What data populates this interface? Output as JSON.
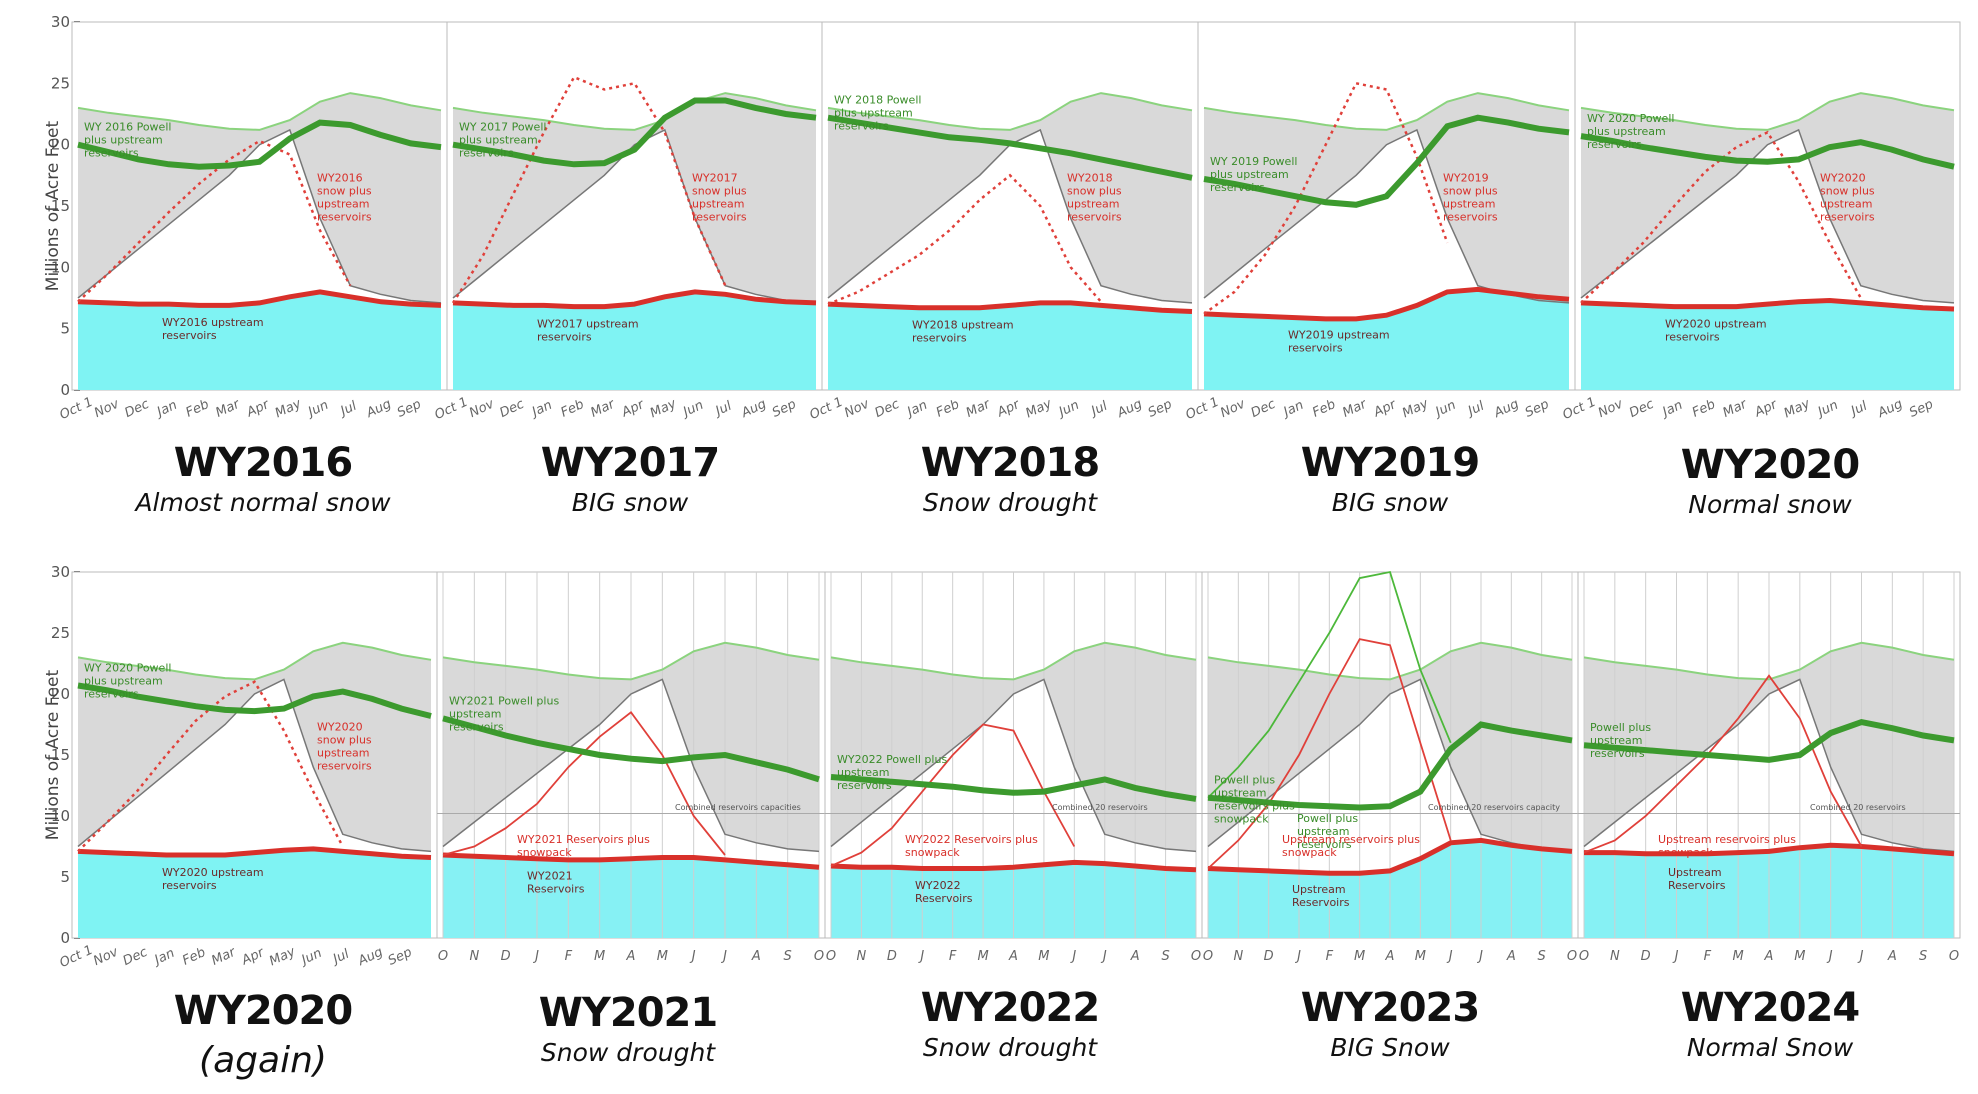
{
  "chart_data": {
    "type": "area",
    "ylabel": "Millions of Acre Feet",
    "ylim": [
      0,
      30
    ],
    "yticks": [
      0,
      5,
      10,
      15,
      20,
      25,
      30
    ],
    "months_long": [
      "Oct 1",
      "Nov",
      "Dec",
      "Jan",
      "Feb",
      "Mar",
      "Apr",
      "May",
      "Jun",
      "Jul",
      "Aug",
      "Sep"
    ],
    "months_short": [
      "O",
      "N",
      "D",
      "J",
      "F",
      "M",
      "A",
      "M",
      "J",
      "J",
      "A",
      "S",
      "O"
    ],
    "normal_powell": [
      23,
      22.6,
      22.3,
      22,
      21.6,
      21.3,
      21.2,
      22,
      23.5,
      24.2,
      23.8,
      23.2,
      22.8
    ],
    "normal_snow": [
      7.5,
      9.5,
      11.5,
      13.5,
      15.5,
      17.5,
      20,
      21.2,
      14,
      8.5,
      7.8,
      7.3,
      7.1
    ],
    "rows": [
      {
        "panels": [
          {
            "title": "WY2016",
            "subtitle": "Almost normal snow",
            "style": "old",
            "labels": {
              "green": "WY 2016 Powell plus upstream reservoirs",
              "red_snow": "WY2016 snow plus upstream reservoirs",
              "upstream": "WY2016 upstream reservoirs"
            },
            "powell": [
              20,
              19.4,
              18.8,
              18.4,
              18.2,
              18.3,
              18.6,
              20.5,
              21.8,
              21.6,
              20.8,
              20.1,
              19.8
            ],
            "upstream": [
              7.2,
              7.1,
              7.0,
              7.0,
              6.9,
              6.9,
              7.1,
              7.6,
              8.0,
              7.6,
              7.2,
              7.0,
              6.9
            ],
            "snow": [
              7.2,
              9.5,
              12,
              14.5,
              16.8,
              18.8,
              20.3,
              19.2,
              13,
              8.5,
              null,
              null,
              null
            ],
            "snow_dotted": true
          },
          {
            "title": "WY2017",
            "subtitle": "BIG snow",
            "style": "old",
            "labels": {
              "green": "WY 2017 Powell plus upstream reservoirs",
              "red_snow": "WY2017 snow plus upstream reservoirs",
              "upstream": "WY2017 upstream reservoirs"
            },
            "powell": [
              20,
              19.6,
              19.2,
              18.7,
              18.4,
              18.5,
              19.6,
              22.2,
              23.6,
              23.6,
              23.0,
              22.5,
              22.2
            ],
            "upstream": [
              7.1,
              7.0,
              6.9,
              6.9,
              6.8,
              6.8,
              7.0,
              7.6,
              8.0,
              7.8,
              7.4,
              7.2,
              7.1
            ],
            "snow": [
              7.1,
              11,
              16,
              21,
              25.5,
              24.5,
              25,
              21,
              14,
              8.5,
              null,
              null,
              null
            ],
            "snow_dotted": true
          },
          {
            "title": "WY2018",
            "subtitle": "Snow drought",
            "style": "old",
            "labels": {
              "green": "WY 2018 Powell plus upstream reservoirs",
              "red_snow": "WY2018 snow plus upstream reservoirs",
              "upstream": "WY2018 upstream reservoirs"
            },
            "powell": [
              22.2,
              21.8,
              21.4,
              21,
              20.6,
              20.4,
              20.1,
              19.7,
              19.3,
              18.8,
              18.3,
              17.8,
              17.3
            ],
            "upstream": [
              7.0,
              6.9,
              6.8,
              6.7,
              6.7,
              6.7,
              6.9,
              7.1,
              7.1,
              6.9,
              6.7,
              6.5,
              6.4
            ],
            "snow": [
              7.0,
              8.0,
              9.5,
              11,
              13,
              15.5,
              17.5,
              15,
              10,
              7.2,
              null,
              null,
              null
            ],
            "snow_dotted": true
          },
          {
            "title": "WY2019",
            "subtitle": "BIG snow",
            "style": "old",
            "labels": {
              "green": "WY 2019 Powell plus upstream reservoirs",
              "red_snow": "WY2019 snow plus upstream reservoirs",
              "upstream": "WY2019 upstream reservoirs"
            },
            "powell": [
              17.2,
              16.8,
              16.3,
              15.8,
              15.3,
              15.1,
              15.8,
              18.5,
              21.5,
              22.2,
              21.8,
              21.3,
              21.0
            ],
            "upstream": [
              6.2,
              6.1,
              6.0,
              5.9,
              5.8,
              5.8,
              6.1,
              6.9,
              8.0,
              8.2,
              7.9,
              7.6,
              7.4
            ],
            "snow": [
              6.2,
              8,
              11,
              15,
              20,
              25,
              24.5,
              19,
              12,
              null,
              null,
              null,
              null
            ],
            "snow_dotted": true
          },
          {
            "title": "WY2020",
            "subtitle": "Normal snow",
            "style": "old",
            "labels": {
              "green": "WY 2020 Powell plus upstream reservoirs",
              "red_snow": "WY2020 snow plus upstream reservoirs",
              "upstream": "WY2020 upstream reservoirs"
            },
            "powell": [
              20.7,
              20.3,
              19.8,
              19.4,
              19.0,
              18.7,
              18.6,
              18.8,
              19.8,
              20.2,
              19.6,
              18.8,
              18.2
            ],
            "upstream": [
              7.1,
              7.0,
              6.9,
              6.8,
              6.8,
              6.8,
              7.0,
              7.2,
              7.3,
              7.1,
              6.9,
              6.7,
              6.6
            ],
            "snow": [
              7.1,
              9.5,
              12,
              15,
              17.8,
              19.8,
              21,
              17,
              12,
              7.5,
              null,
              null,
              null
            ],
            "snow_dotted": true
          }
        ]
      },
      {
        "panels": [
          {
            "title": "WY2020",
            "subtitle": "(again)",
            "style": "old",
            "labels": {
              "green": "WY 2020 Powell plus upstream reservoirs",
              "red_snow": "WY2020 snow plus upstream reservoirs",
              "upstream": "WY2020 upstream reservoirs"
            },
            "powell": [
              20.7,
              20.3,
              19.8,
              19.4,
              19.0,
              18.7,
              18.6,
              18.8,
              19.8,
              20.2,
              19.6,
              18.8,
              18.2
            ],
            "upstream": [
              7.1,
              7.0,
              6.9,
              6.8,
              6.8,
              6.8,
              7.0,
              7.2,
              7.3,
              7.1,
              6.9,
              6.7,
              6.6
            ],
            "snow": [
              7.1,
              9.5,
              12,
              15,
              17.8,
              19.8,
              21,
              17,
              12,
              7.5,
              null,
              null,
              null
            ],
            "snow_dotted": true
          },
          {
            "title": "WY2021",
            "subtitle": "Snow drought",
            "style": "new",
            "labels": {
              "green": "WY2021 Powell plus upstream reservoirs",
              "red_snow": "WY2021 Reservoirs plus snowpack",
              "upstream": "WY2021 Reservoirs",
              "capacity": "Combined reservoirs capacities"
            },
            "powell": [
              18,
              17.3,
              16.6,
              16.0,
              15.5,
              15.0,
              14.7,
              14.5,
              14.8,
              15.0,
              14.4,
              13.8,
              13.0
            ],
            "upstream": [
              6.8,
              6.7,
              6.6,
              6.5,
              6.4,
              6.4,
              6.5,
              6.6,
              6.6,
              6.4,
              6.2,
              6.0,
              5.8
            ],
            "snow": [
              6.8,
              7.5,
              9,
              11,
              14,
              16.5,
              18.5,
              15,
              10,
              6.8,
              null,
              null,
              null
            ],
            "snow_dotted": false
          },
          {
            "title": "WY2022",
            "subtitle": "Snow drought",
            "style": "new",
            "labels": {
              "green": "WY2022 Powell plus upstream reservoirs",
              "red_snow": "WY2022 Reservoirs plus snowpack",
              "upstream": "WY2022 Reservoirs",
              "capacity": "Combined 20 reservoirs"
            },
            "powell": [
              13.2,
              13.0,
              12.8,
              12.6,
              12.4,
              12.1,
              11.9,
              12.0,
              12.5,
              13.0,
              12.3,
              11.8,
              11.4
            ],
            "upstream": [
              5.9,
              5.8,
              5.8,
              5.7,
              5.7,
              5.7,
              5.8,
              6.0,
              6.2,
              6.1,
              5.9,
              5.7,
              5.6
            ],
            "snow": [
              5.9,
              7,
              9,
              12,
              15,
              17.5,
              17,
              12,
              7.5,
              null,
              null,
              null,
              null
            ],
            "snow_dotted": false
          },
          {
            "title": "WY2023",
            "subtitle": "BIG Snow",
            "style": "new",
            "labels": {
              "green": "Powell plus upstream reservoirs plus snowpack",
              "green2": "Powell plus upstream reservoirs",
              "red_snow": "Upstream reservoirs plus snowpack",
              "upstream": "Upstream Reservoirs",
              "capacity": "Combined 20 reservoirs capacity"
            },
            "powell": [
              11.5,
              11.3,
              11.1,
              10.9,
              10.8,
              10.7,
              10.8,
              12,
              15.5,
              17.5,
              17.0,
              16.6,
              16.2
            ],
            "upstream": [
              5.7,
              5.6,
              5.5,
              5.4,
              5.3,
              5.3,
              5.5,
              6.5,
              7.8,
              8.0,
              7.6,
              7.3,
              7.1
            ],
            "snow": [
              5.7,
              8,
              11,
              15,
              20,
              24.5,
              24,
              16,
              8,
              null,
              null,
              null,
              null
            ],
            "powell_snow": [
              11.5,
              14,
              17,
              21,
              25,
              29.5,
              30,
              22,
              16,
              null,
              null,
              null,
              null
            ],
            "snow_dotted": false
          },
          {
            "title": "WY2024",
            "subtitle": "Normal Snow",
            "style": "new",
            "labels": {
              "green": "Powell plus upstream reservoirs",
              "red_snow": "Upstream reservoirs plus snowpack",
              "upstream": "Upstream Reservoirs",
              "capacity": "Combined 20 reservoirs"
            },
            "powell": [
              15.8,
              15.6,
              15.4,
              15.2,
              15.0,
              14.8,
              14.6,
              15.0,
              16.8,
              17.7,
              17.2,
              16.6,
              16.2
            ],
            "upstream": [
              7.0,
              7.0,
              6.9,
              6.9,
              6.9,
              7.0,
              7.1,
              7.4,
              7.6,
              7.5,
              7.3,
              7.1,
              6.9
            ],
            "snow": [
              7.0,
              8,
              10,
              12.5,
              15,
              18,
              21.5,
              18,
              12,
              7.5,
              null,
              null,
              null
            ],
            "snow_dotted": false
          }
        ]
      }
    ]
  }
}
